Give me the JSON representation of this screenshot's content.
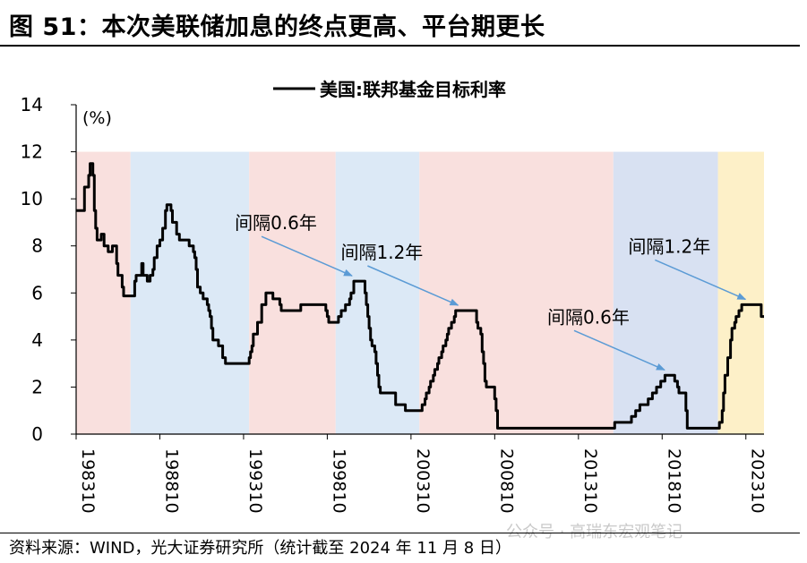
{
  "figure": {
    "title": "图 51：本次美联储加息的终点更高、平台期更长",
    "source": "资料来源：WIND，光大证券研究所（统计截至 2024 年 11 月 8 日）",
    "watermark": "公众号 · 高瑞东宏观笔记"
  },
  "chart_data": {
    "type": "line",
    "title": "",
    "xlabel": "",
    "ylabel": "(%)",
    "ylim": [
      0,
      14
    ],
    "yticks": [
      0,
      2,
      4,
      6,
      8,
      10,
      12,
      14
    ],
    "xlim": [
      "1983-10",
      "2024-11"
    ],
    "xticks": [
      "198310",
      "198810",
      "199310",
      "199810",
      "200310",
      "200810",
      "201310",
      "201810",
      "202310"
    ],
    "legend": {
      "position": "top-center"
    },
    "grid": false,
    "series": [
      {
        "name": "美国:联邦基金目标利率",
        "color": "#000000",
        "points": [
          [
            "1983-10",
            9.5
          ],
          [
            "1984-03",
            9.5
          ],
          [
            "1984-04",
            10.5
          ],
          [
            "1984-07",
            11.0
          ],
          [
            "1984-08",
            11.5
          ],
          [
            "1984-10",
            11.0
          ],
          [
            "1984-11",
            9.5
          ],
          [
            "1984-12",
            8.75
          ],
          [
            "1985-01",
            8.25
          ],
          [
            "1985-04",
            8.5
          ],
          [
            "1985-06",
            8.0
          ],
          [
            "1985-09",
            7.75
          ],
          [
            "1985-12",
            8.0
          ],
          [
            "1986-03",
            7.25
          ],
          [
            "1986-04",
            6.75
          ],
          [
            "1986-07",
            6.25
          ],
          [
            "1986-08",
            5.875
          ],
          [
            "1987-02",
            5.875
          ],
          [
            "1987-04",
            6.5
          ],
          [
            "1987-05",
            6.75
          ],
          [
            "1987-07",
            6.75
          ],
          [
            "1987-09",
            7.25
          ],
          [
            "1987-10",
            6.75
          ],
          [
            "1987-11",
            6.75
          ],
          [
            "1988-01",
            6.5
          ],
          [
            "1988-03",
            6.75
          ],
          [
            "1988-05",
            7.0
          ],
          [
            "1988-06",
            7.5
          ],
          [
            "1988-08",
            8.0
          ],
          [
            "1988-10",
            8.25
          ],
          [
            "1988-12",
            8.75
          ],
          [
            "1989-02",
            9.5
          ],
          [
            "1989-03",
            9.75
          ],
          [
            "1989-05",
            9.75
          ],
          [
            "1989-06",
            9.5
          ],
          [
            "1989-07",
            9.0
          ],
          [
            "1989-10",
            8.5
          ],
          [
            "1989-12",
            8.25
          ],
          [
            "1990-06",
            8.25
          ],
          [
            "1990-07",
            8.0
          ],
          [
            "1990-10",
            7.75
          ],
          [
            "1990-11",
            7.5
          ],
          [
            "1990-12",
            7.0
          ],
          [
            "1991-01",
            6.25
          ],
          [
            "1991-03",
            6.0
          ],
          [
            "1991-05",
            5.75
          ],
          [
            "1991-08",
            5.5
          ],
          [
            "1991-09",
            5.25
          ],
          [
            "1991-10",
            5.0
          ],
          [
            "1991-11",
            4.5
          ],
          [
            "1991-12",
            4.0
          ],
          [
            "1992-04",
            3.75
          ],
          [
            "1992-07",
            3.25
          ],
          [
            "1992-09",
            3.0
          ],
          [
            "1994-01",
            3.0
          ],
          [
            "1994-02",
            3.25
          ],
          [
            "1994-03",
            3.5
          ],
          [
            "1994-04",
            3.75
          ],
          [
            "1994-05",
            4.25
          ],
          [
            "1994-08",
            4.75
          ],
          [
            "1994-11",
            5.5
          ],
          [
            "1995-02",
            6.0
          ],
          [
            "1995-06",
            6.0
          ],
          [
            "1995-07",
            5.75
          ],
          [
            "1995-12",
            5.5
          ],
          [
            "1996-01",
            5.25
          ],
          [
            "1997-03",
            5.5
          ],
          [
            "1998-09",
            5.25
          ],
          [
            "1998-10",
            5.0
          ],
          [
            "1998-11",
            4.75
          ],
          [
            "1999-06",
            5.0
          ],
          [
            "1999-08",
            5.25
          ],
          [
            "1999-11",
            5.5
          ],
          [
            "2000-02",
            5.75
          ],
          [
            "2000-03",
            6.0
          ],
          [
            "2000-05",
            6.5
          ],
          [
            "2001-01",
            6.0
          ],
          [
            "2001-02",
            5.5
          ],
          [
            "2001-03",
            5.0
          ],
          [
            "2001-04",
            4.5
          ],
          [
            "2001-05",
            4.0
          ],
          [
            "2001-06",
            3.75
          ],
          [
            "2001-08",
            3.5
          ],
          [
            "2001-09",
            3.0
          ],
          [
            "2001-10",
            2.5
          ],
          [
            "2001-11",
            2.0
          ],
          [
            "2001-12",
            1.75
          ],
          [
            "2002-11",
            1.25
          ],
          [
            "2003-06",
            1.0
          ],
          [
            "2004-06",
            1.25
          ],
          [
            "2004-08",
            1.5
          ],
          [
            "2004-09",
            1.75
          ],
          [
            "2004-11",
            2.0
          ],
          [
            "2004-12",
            2.25
          ],
          [
            "2005-02",
            2.5
          ],
          [
            "2005-03",
            2.75
          ],
          [
            "2005-05",
            3.0
          ],
          [
            "2005-06",
            3.25
          ],
          [
            "2005-08",
            3.5
          ],
          [
            "2005-09",
            3.75
          ],
          [
            "2005-11",
            4.0
          ],
          [
            "2005-12",
            4.25
          ],
          [
            "2006-01",
            4.5
          ],
          [
            "2006-03",
            4.75
          ],
          [
            "2006-05",
            5.0
          ],
          [
            "2006-06",
            5.25
          ],
          [
            "2007-09",
            4.75
          ],
          [
            "2007-10",
            4.5
          ],
          [
            "2007-12",
            4.25
          ],
          [
            "2008-01",
            3.5
          ],
          [
            "2008-02",
            3.0
          ],
          [
            "2008-03",
            2.25
          ],
          [
            "2008-04",
            2.0
          ],
          [
            "2008-10",
            1.5
          ],
          [
            "2008-11",
            1.0
          ],
          [
            "2008-12",
            0.25
          ],
          [
            "2015-12",
            0.5
          ],
          [
            "2016-12",
            0.75
          ],
          [
            "2017-03",
            1.0
          ],
          [
            "2017-06",
            1.25
          ],
          [
            "2017-12",
            1.5
          ],
          [
            "2018-03",
            1.75
          ],
          [
            "2018-06",
            2.0
          ],
          [
            "2018-09",
            2.25
          ],
          [
            "2018-12",
            2.5
          ],
          [
            "2019-07",
            2.25
          ],
          [
            "2019-09",
            2.0
          ],
          [
            "2019-10",
            1.75
          ],
          [
            "2020-03",
            1.0
          ],
          [
            "2020-04",
            0.25
          ],
          [
            "2022-03",
            0.5
          ],
          [
            "2022-05",
            1.0
          ],
          [
            "2022-06",
            1.75
          ],
          [
            "2022-07",
            2.5
          ],
          [
            "2022-09",
            3.25
          ],
          [
            "2022-11",
            4.0
          ],
          [
            "2022-12",
            4.5
          ],
          [
            "2023-02",
            4.75
          ],
          [
            "2023-03",
            5.0
          ],
          [
            "2023-05",
            5.25
          ],
          [
            "2023-07",
            5.5
          ],
          [
            "2024-09",
            5.0
          ],
          [
            "2024-11",
            5.0
          ]
        ]
      }
    ],
    "shaded_periods": [
      {
        "phase": "hike",
        "start": "1983-10",
        "end": "1987-01",
        "color": "#f9e0de"
      },
      {
        "phase": "cut",
        "start": "1987-01",
        "end": "1994-02",
        "color": "#dce9f6"
      },
      {
        "phase": "hike",
        "start": "1994-02",
        "end": "1999-04",
        "color": "#f9e0de"
      },
      {
        "phase": "cut",
        "start": "1999-04",
        "end": "2004-04",
        "color": "#dce9f6"
      },
      {
        "phase": "hike",
        "start": "2004-04",
        "end": "2015-11",
        "color": "#f9e0de"
      },
      {
        "phase": "cut",
        "start": "2015-11",
        "end": "2022-02",
        "color": "#d8e1f2"
      },
      {
        "phase": "plateau",
        "start": "2022-02",
        "end": "2024-12",
        "color": "#fdf0c8"
      }
    ],
    "annotations": [
      {
        "text": "间隔0.6年",
        "point": [
          "2000-05",
          6.5
        ]
      },
      {
        "text": "间隔1.2年",
        "point": [
          "2006-09",
          5.25
        ]
      },
      {
        "text": "间隔0.6年",
        "point": [
          "2019-01",
          2.5
        ]
      },
      {
        "text": "间隔1.2年",
        "point": [
          "2023-11",
          5.5
        ]
      }
    ]
  }
}
